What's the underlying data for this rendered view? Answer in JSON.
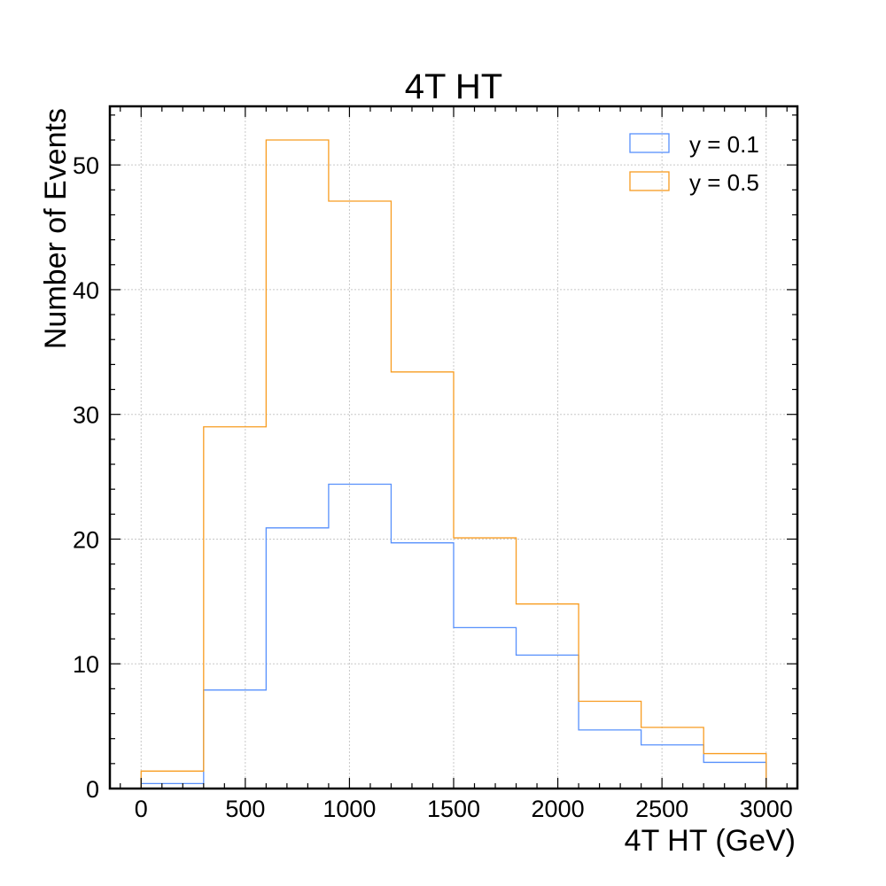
{
  "chart_data": {
    "type": "histogram-step",
    "title": "4T HT",
    "xlabel": "4T HT (GeV)",
    "ylabel": "Number of Events",
    "xlim": [
      -150,
      3150
    ],
    "ylim": [
      0,
      54.7
    ],
    "bin_edges": [
      0,
      300,
      600,
      900,
      1200,
      1500,
      1800,
      2100,
      2400,
      2700,
      3000
    ],
    "x_ticks": [
      0,
      500,
      1000,
      1500,
      2000,
      2500,
      3000
    ],
    "x_tick_labels": [
      "0",
      "500",
      "1000",
      "1500",
      "2000",
      "2500",
      "3000"
    ],
    "y_ticks": [
      0,
      10,
      20,
      30,
      40,
      50
    ],
    "y_tick_labels": [
      "0",
      "10",
      "20",
      "30",
      "40",
      "50"
    ],
    "grid": true,
    "legend_position": "top-right",
    "series": [
      {
        "name": "y = 0.1",
        "color": "#5790fc",
        "values": [
          0.4,
          7.9,
          20.9,
          24.4,
          19.7,
          12.9,
          10.7,
          4.7,
          3.5,
          2.1
        ]
      },
      {
        "name": "y = 0.5",
        "color": "#f89c20",
        "values": [
          1.4,
          29.0,
          52.0,
          47.1,
          33.4,
          20.1,
          14.8,
          7.0,
          4.9,
          2.8
        ]
      }
    ]
  }
}
